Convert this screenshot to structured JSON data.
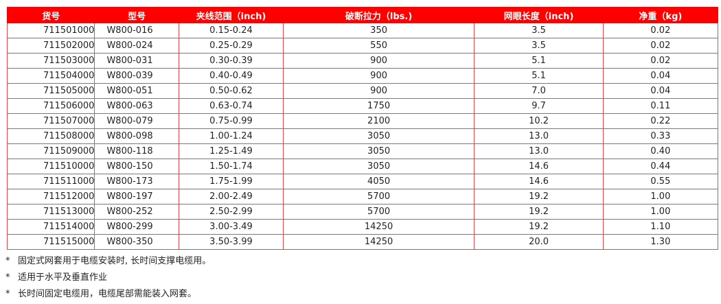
{
  "table": {
    "header": [
      "货号",
      "型号",
      "夹线范围（inch)",
      "破断拉力（lbs.)",
      "网眼长度（inch)",
      "净重（kg)"
    ],
    "rows": [
      [
        "711501000",
        "W800-016",
        "0.15-0.24",
        "350",
        "3.5",
        "0.02"
      ],
      [
        "711502000",
        "W800-024",
        "0.25-0.29",
        "550",
        "3.5",
        "0.02"
      ],
      [
        "711503000",
        "W800-031",
        "0.30-0.39",
        "900",
        "5.1",
        "0.02"
      ],
      [
        "711504000",
        "W800-039",
        "0.40-0.49",
        "900",
        "5.1",
        "0.04"
      ],
      [
        "711505000",
        "W800-051",
        "0.50-0.62",
        "900",
        "7.0",
        "0.04"
      ],
      [
        "711506000",
        "W800-063",
        "0.63-0.74",
        "1750",
        "9.7",
        "0.11"
      ],
      [
        "711507000",
        "W800-079",
        "0.75-0.99",
        "2100",
        "10.2",
        "0.22"
      ],
      [
        "711508000",
        "W800-098",
        "1.00-1.24",
        "3050",
        "13.0",
        "0.33"
      ],
      [
        "711509000",
        "W800-118",
        "1.25-1.49",
        "3050",
        "13.0",
        "0.40"
      ],
      [
        "711510000",
        "W800-150",
        "1.50-1.74",
        "3050",
        "14.6",
        "0.44"
      ],
      [
        "711511000",
        "W800-173",
        "1.75-1.99",
        "4050",
        "14.6",
        "0.55"
      ],
      [
        "711512000",
        "W800-197",
        "2.00-2.49",
        "5700",
        "19.2",
        "1.00"
      ],
      [
        "711513000",
        "W800-252",
        "2.50-2.99",
        "5700",
        "19.2",
        "1.00"
      ],
      [
        "711514000",
        "W800-299",
        "3.00-3.49",
        "14250",
        "19.2",
        "1.10"
      ],
      [
        "711515000",
        "W800-350",
        "3.50-3.99",
        "14250",
        "20.0",
        "1.30"
      ]
    ]
  },
  "notes": [
    {
      "marker": "*",
      "text": "固定式网套用于电缆安装时, 长时间支撑电缆用。"
    },
    {
      "marker": "*",
      "text": "适用于水平及垂直作业"
    },
    {
      "marker": "*",
      "text": "长时间固定电缆用，电缆尾部需能装入网套。"
    }
  ]
}
